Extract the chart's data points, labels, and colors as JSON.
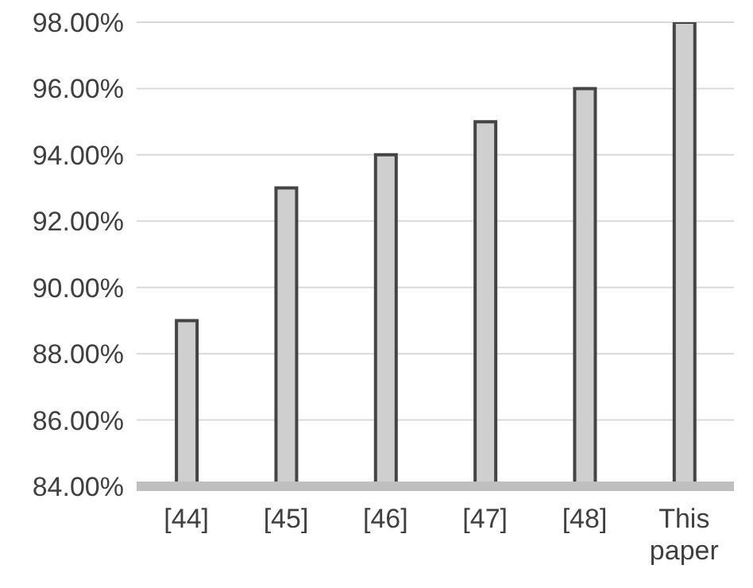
{
  "chart_data": {
    "type": "bar",
    "categories": [
      "[44]",
      "[45]",
      "[46]",
      "[47]",
      "[48]",
      "This paper"
    ],
    "values": [
      89,
      93,
      94,
      95,
      96,
      98
    ],
    "color": "#cfcfcf",
    "ylim": [
      84,
      98
    ],
    "yticks": [
      {
        "value": 84,
        "label": "84.00%"
      },
      {
        "value": 86,
        "label": "86.00%"
      },
      {
        "value": 88,
        "label": "88.00%"
      },
      {
        "value": 90,
        "label": "90.00%"
      },
      {
        "value": 92,
        "label": "92.00%"
      },
      {
        "value": 94,
        "label": "94.00%"
      },
      {
        "value": 96,
        "label": "96.00%"
      },
      {
        "value": 98,
        "label": "98.00%"
      }
    ],
    "grid": "y"
  }
}
